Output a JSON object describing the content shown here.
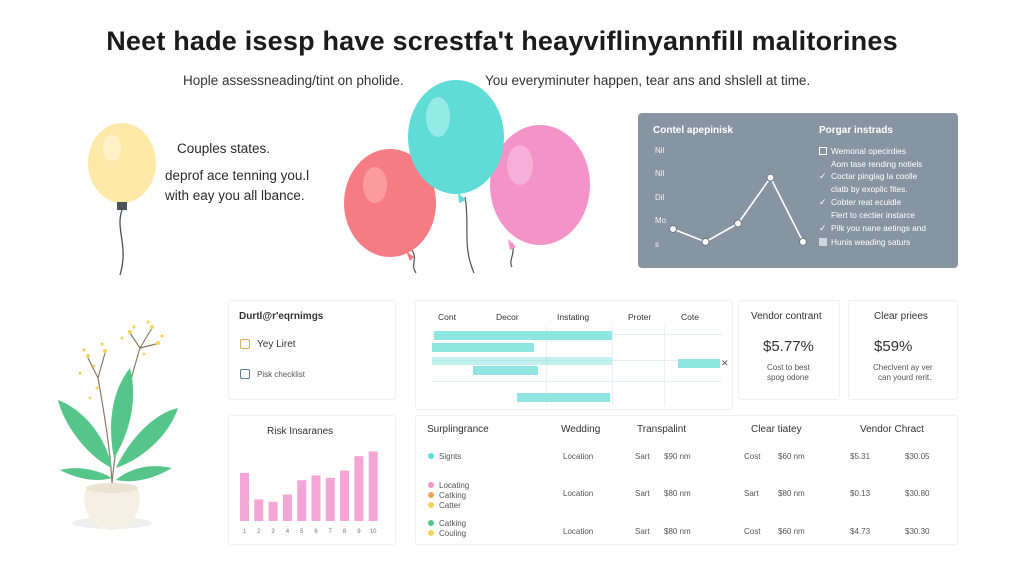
{
  "header": {
    "title": "Neet hade isesp have screstfa't heayviflinyannfill malitorines",
    "subtitle_left": "Hople assessneading/tint on pholide.",
    "subtitle_right": "You everyminuter happen, tear ans and shslell at time."
  },
  "left_block": {
    "line1": "Couples states.",
    "line2": "deprof ace tenning you.l",
    "line3": "with eay you all lbance."
  },
  "colors": {
    "yellow_balloon": "#fde9a8",
    "red_balloon": "#f57c82",
    "teal_balloon": "#5fdcd6",
    "pink_balloon": "#f393c8",
    "panel_bg": "#8795a3",
    "gantt_bar": "#8fe5e2",
    "bar_chart": "#f3a5d6",
    "leaf": "#56c58a"
  },
  "panel": {
    "chart_title": "Contel apepinisk",
    "list_title": "Porgar instrads",
    "y_ticks": [
      "Nil",
      "Nil",
      "Dil",
      "Mo",
      "s"
    ],
    "checklist": [
      {
        "mark": "box",
        "text": "Wemonal opecirdies"
      },
      {
        "mark": "none",
        "text": "Aom tase rending notiels"
      },
      {
        "mark": "tick",
        "text": "Coctar pinglag la coolle"
      },
      {
        "mark": "none",
        "text": "clatb by exoplic fites."
      },
      {
        "mark": "tick",
        "text": "Cobter reat eculdle"
      },
      {
        "mark": "none",
        "text": "Flert to cectier instarce"
      },
      {
        "mark": "tick",
        "text": "Pilk you nane aetings and"
      },
      {
        "mark": "filled",
        "text": "Hunis weading saturs"
      }
    ]
  },
  "checklist_card": {
    "title": "Durtl@r'eqrnimgs",
    "item1": "Yey Liret",
    "item2": "Pisk checklist"
  },
  "gantt": {
    "columns": [
      "Cont",
      "Decor",
      "Instating",
      "Proter",
      "Cote"
    ],
    "close_mark": "✕"
  },
  "stat1": {
    "label": "Vendor contrant",
    "value": "$5.77%",
    "caption1": "Cost to best",
    "caption2": "spog odone"
  },
  "stat2": {
    "label": "Clear priees",
    "value": "$59%",
    "caption1": "Checlvent ay ver",
    "caption2": "can yourd rerit."
  },
  "risk": {
    "title": "Risk Insaranes",
    "x_labels": [
      "1",
      "2",
      "3",
      "4",
      "5",
      "6",
      "7",
      "8",
      "9",
      "10"
    ]
  },
  "table": {
    "headers": [
      "Surplingrance",
      "Wedding",
      "Transpalint",
      "Clear tiatey",
      "Vendor Chract"
    ],
    "legend": [
      {
        "color": "#5fdcd6",
        "text": "Signts"
      },
      {
        "color": "#f393c8",
        "text": "Locating"
      },
      {
        "color": "#f2a25b",
        "text": "Catking"
      },
      {
        "color": "#f5d35c",
        "text": "Catter"
      },
      {
        "color": "#56c58a",
        "text": "Catking"
      },
      {
        "color": "#f5d35c",
        "text": "Couling"
      }
    ],
    "rows": [
      {
        "wedding": "Location",
        "t1": "Sart",
        "t2": "$90 nm",
        "c1": "Cost",
        "c2": "$60 nm",
        "v1": "$5.31",
        "v2": "$30.05"
      },
      {
        "wedding": "Location",
        "t1": "Sart",
        "t2": "$80 nm",
        "c1": "Sart",
        "c2": "$80 nm",
        "v1": "$0.13",
        "v2": "$30.80"
      },
      {
        "wedding": "Location",
        "t1": "Sart",
        "t2": "$80 nm",
        "c1": "Cost",
        "c2": "$60 nm",
        "v1": "$4.73",
        "v2": "$30.30"
      }
    ]
  },
  "chart_data": [
    {
      "type": "line",
      "title": "Contel apepinisk",
      "y_tick_labels": [
        "Nil",
        "Nil",
        "Dil",
        "Mo",
        "s"
      ],
      "values": [
        1.2,
        0.5,
        1.5,
        4.0,
        0.5
      ],
      "ylim": [
        0,
        6
      ],
      "grid": true
    },
    {
      "type": "bar",
      "title": "Risk Insaranes",
      "categories": [
        "1",
        "2",
        "3",
        "4",
        "5",
        "6",
        "7",
        "8",
        "9",
        "10"
      ],
      "values": [
        20,
        9,
        8,
        11,
        17,
        19,
        18,
        21,
        27,
        29
      ],
      "ylim": [
        0,
        30
      ]
    }
  ]
}
